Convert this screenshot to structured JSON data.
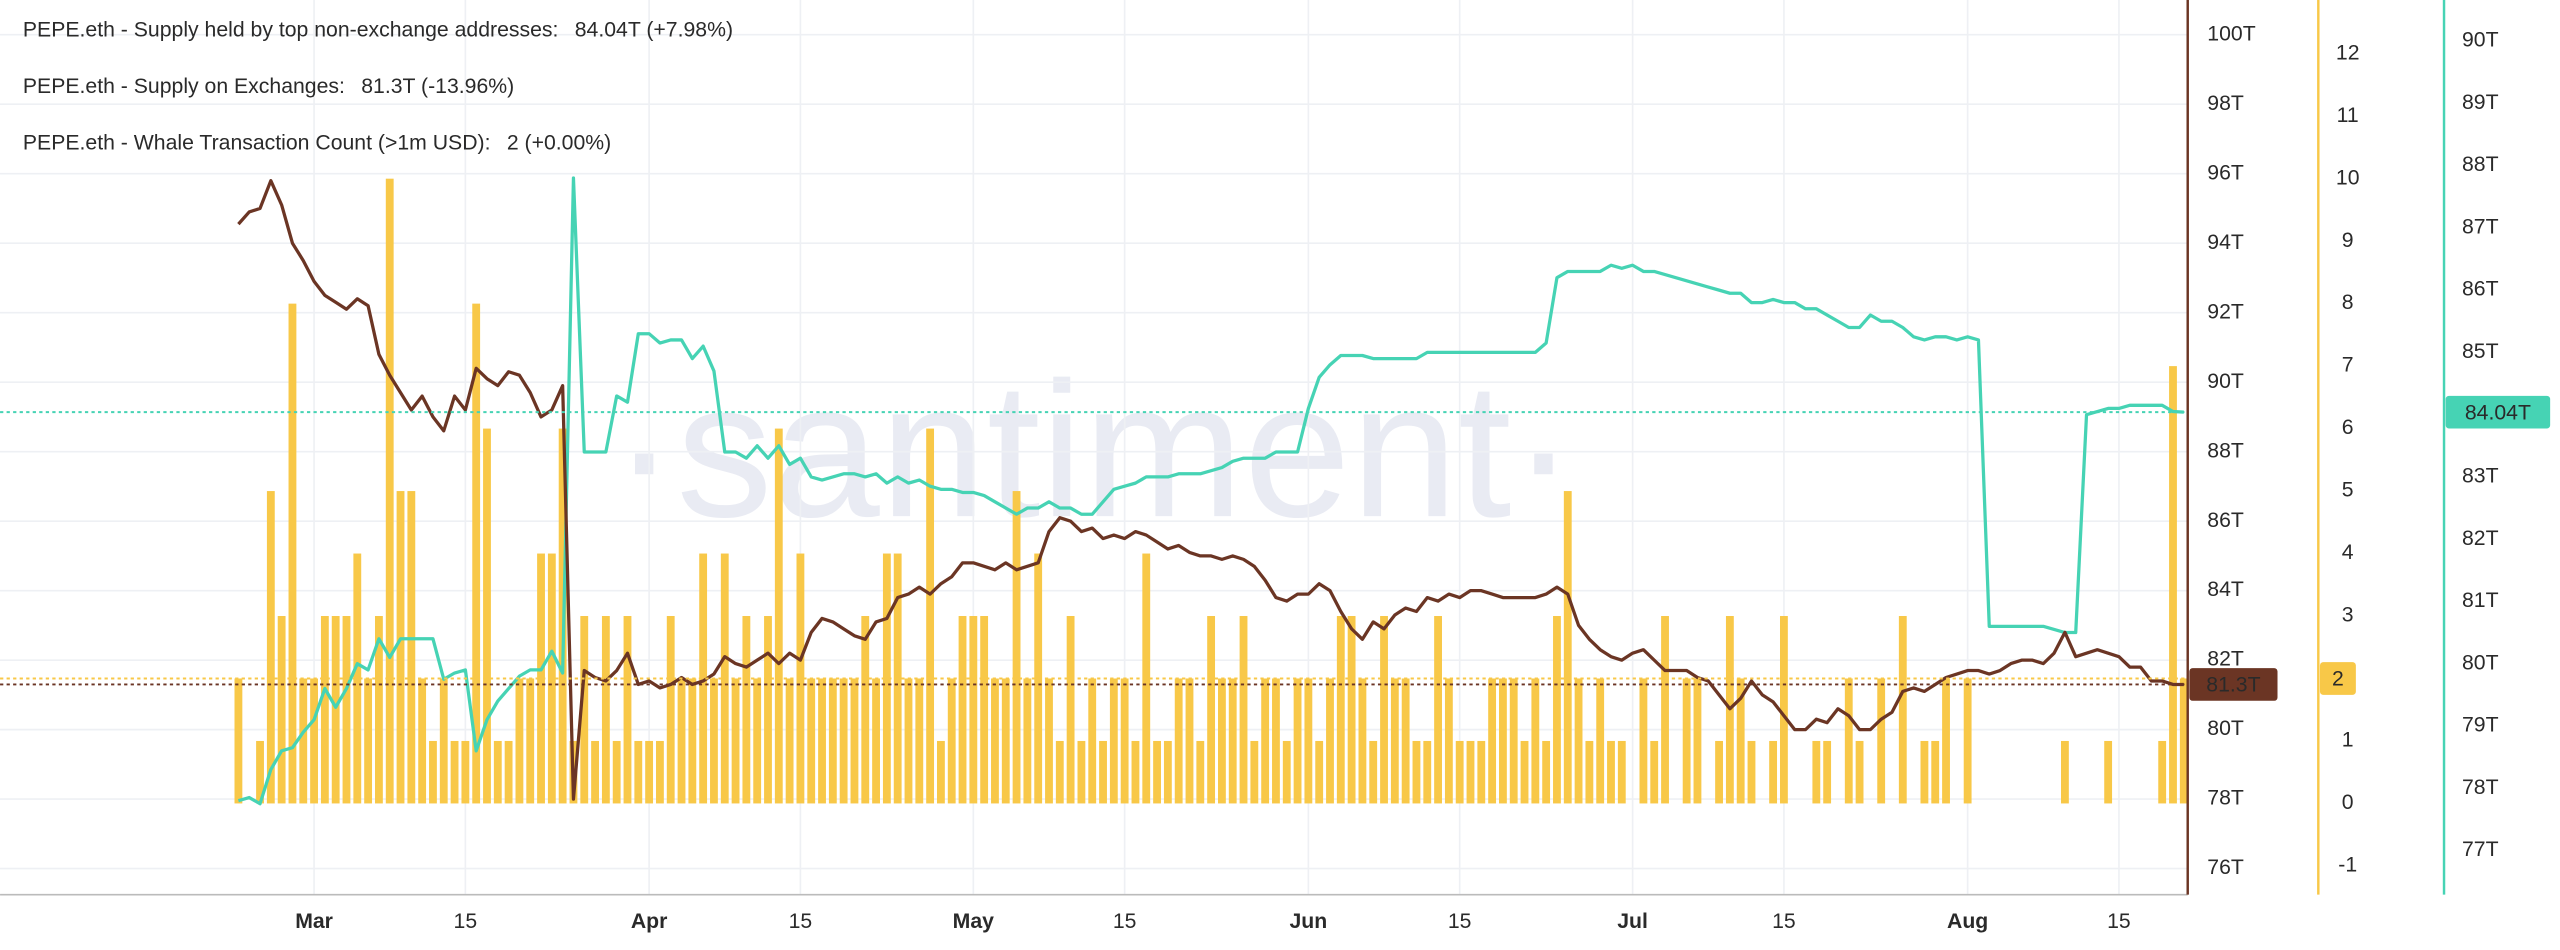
{
  "chart_data": {
    "type": "line",
    "watermark": "·santiment·",
    "grid": true,
    "categories": [
      null,
      null,
      null,
      null,
      null,
      null,
      null,
      "Mar",
      null,
      null,
      null,
      null,
      null,
      null,
      null,
      null,
      null,
      null,
      null,
      null,
      null,
      "15",
      null,
      null,
      null,
      null,
      null,
      null,
      null,
      null,
      null,
      null,
      null,
      null,
      null,
      null,
      null,
      null,
      "Apr",
      null,
      null,
      null,
      null,
      null,
      null,
      null,
      null,
      null,
      null,
      null,
      null,
      null,
      "15",
      null,
      null,
      null,
      null,
      null,
      null,
      null,
      null,
      null,
      null,
      null,
      null,
      null,
      null,
      null,
      "May",
      null,
      null,
      null,
      null,
      null,
      null,
      null,
      null,
      null,
      null,
      null,
      null,
      null,
      "15",
      null,
      null,
      null,
      null,
      null,
      null,
      null,
      null,
      null,
      null,
      null,
      null,
      null,
      null,
      null,
      null,
      "Jun",
      null,
      null,
      null,
      null,
      null,
      null,
      null,
      null,
      null,
      null,
      null,
      null,
      null,
      "15",
      null,
      null,
      null,
      null,
      null,
      null,
      null,
      null,
      null,
      null,
      null,
      null,
      null,
      null,
      null,
      "Jul",
      null,
      null,
      null,
      null,
      null,
      null,
      null,
      null,
      null,
      null,
      null,
      null,
      null,
      "15",
      null,
      null,
      null,
      null,
      null,
      null,
      null,
      null,
      null,
      null,
      null,
      null,
      null,
      null,
      null,
      null,
      "Aug",
      null,
      null,
      null,
      null,
      null,
      null,
      null,
      null,
      null,
      null,
      null,
      null,
      null,
      "15",
      null,
      null,
      null,
      null,
      null,
      null
    ],
    "ylim": [
      75.25,
      101
    ],
    "yticks": [
      {
        "value": 76,
        "label": "76T"
      },
      {
        "value": 78,
        "label": "78T"
      },
      {
        "value": 80,
        "label": "80T"
      },
      {
        "value": 82,
        "label": "82T"
      },
      {
        "value": 84,
        "label": "84T"
      },
      {
        "value": 86,
        "label": "86T"
      },
      {
        "value": 88,
        "label": "88T"
      },
      {
        "value": 90,
        "label": "90T"
      },
      {
        "value": 92,
        "label": "92T"
      },
      {
        "value": 94,
        "label": "94T"
      },
      {
        "value": 96,
        "label": "96T"
      },
      {
        "value": 98,
        "label": "98T"
      },
      {
        "value": 100,
        "label": "100T"
      }
    ],
    "y2lim": [
      -1.46,
      12.86
    ],
    "y2ticks": [
      -1,
      0,
      1,
      2,
      3,
      4,
      5,
      6,
      7,
      8,
      9,
      10,
      11,
      12
    ],
    "y3lim": [
      76.29,
      90.66
    ],
    "y3ticks": [
      {
        "value": 77,
        "label": "77T"
      },
      {
        "value": 78,
        "label": "78T"
      },
      {
        "value": 79,
        "label": "79T"
      },
      {
        "value": 80,
        "label": "80T"
      },
      {
        "value": 81,
        "label": "81T"
      },
      {
        "value": 82,
        "label": "82T"
      },
      {
        "value": 83,
        "label": "83T"
      },
      {
        "value": 84,
        "label": "84T"
      },
      {
        "value": 85,
        "label": "85T"
      },
      {
        "value": 86,
        "label": "86T"
      },
      {
        "value": 87,
        "label": "87T"
      },
      {
        "value": 88,
        "label": "88T"
      },
      {
        "value": 89,
        "label": "89T"
      },
      {
        "value": 90,
        "label": "90T"
      }
    ],
    "series": [
      {
        "name": "PEPE.eth - Supply held by top non-exchange addresses:",
        "legend_value": "84.04T (+7.98%)",
        "last_value_label": "84.04T",
        "color": "#46d3b4",
        "axis": "y3",
        "type": "line",
        "values": [
          77.8,
          77.85,
          77.75,
          78.3,
          78.6,
          78.65,
          78.9,
          79.1,
          79.6,
          79.3,
          79.6,
          80.0,
          79.9,
          80.4,
          80.1,
          80.4,
          80.4,
          80.4,
          80.4,
          79.75,
          79.85,
          79.9,
          78.6,
          79.1,
          79.4,
          79.6,
          79.8,
          79.9,
          79.9,
          80.2,
          79.85,
          87.8,
          83.4,
          83.4,
          83.4,
          84.3,
          84.2,
          85.3,
          85.3,
          85.15,
          85.2,
          85.2,
          84.9,
          85.1,
          84.7,
          83.4,
          83.4,
          83.3,
          83.5,
          83.3,
          83.5,
          83.2,
          83.3,
          83.0,
          82.95,
          83.0,
          83.05,
          83.05,
          83.0,
          83.05,
          82.9,
          83.0,
          82.9,
          82.95,
          82.85,
          82.8,
          82.8,
          82.75,
          82.75,
          82.7,
          82.6,
          82.5,
          82.4,
          82.5,
          82.5,
          82.6,
          82.5,
          82.5,
          82.4,
          82.4,
          82.6,
          82.8,
          82.85,
          82.9,
          83.0,
          83.0,
          83.0,
          83.05,
          83.05,
          83.05,
          83.1,
          83.15,
          83.25,
          83.3,
          83.3,
          83.3,
          83.4,
          83.4,
          83.4,
          84.1,
          84.6,
          84.8,
          84.95,
          84.95,
          84.95,
          84.9,
          84.9,
          84.9,
          84.9,
          84.9,
          85.0,
          85.0,
          85.0,
          85.0,
          85.0,
          85.0,
          85.0,
          85.0,
          85.0,
          85.0,
          85.0,
          85.15,
          86.2,
          86.3,
          86.3,
          86.3,
          86.3,
          86.4,
          86.35,
          86.4,
          86.3,
          86.3,
          86.25,
          86.2,
          86.15,
          86.1,
          86.05,
          86.0,
          85.95,
          85.95,
          85.8,
          85.8,
          85.85,
          85.8,
          85.8,
          85.7,
          85.7,
          85.6,
          85.5,
          85.4,
          85.4,
          85.6,
          85.5,
          85.5,
          85.4,
          85.25,
          85.2,
          85.25,
          85.25,
          85.2,
          85.25,
          85.2,
          80.6,
          80.6,
          80.6,
          80.6,
          80.6,
          80.6,
          80.55,
          80.5,
          80.5,
          84.0,
          84.05,
          84.1,
          84.1,
          84.15,
          84.15,
          84.15,
          84.15,
          84.05,
          84.04
        ]
      },
      {
        "name": "PEPE.eth - Supply on Exchanges:",
        "legend_value": "81.3T (-13.96%)",
        "last_value_label": "81.3T",
        "color": "#6b3524",
        "axis": "y",
        "type": "line",
        "values": [
          94.55,
          94.9,
          95.0,
          95.8,
          95.1,
          94.0,
          93.5,
          92.9,
          92.5,
          92.3,
          92.1,
          92.4,
          92.2,
          90.8,
          90.2,
          89.7,
          89.2,
          89.6,
          89.0,
          88.6,
          89.6,
          89.2,
          90.4,
          90.1,
          89.9,
          90.3,
          90.2,
          89.7,
          89.0,
          89.2,
          89.9,
          78.0,
          81.7,
          81.5,
          81.4,
          81.7,
          82.2,
          81.3,
          81.4,
          81.2,
          81.3,
          81.5,
          81.3,
          81.4,
          81.6,
          82.1,
          81.9,
          81.8,
          82.0,
          82.2,
          81.9,
          82.2,
          82.0,
          82.8,
          83.2,
          83.1,
          82.9,
          82.7,
          82.6,
          83.1,
          83.2,
          83.8,
          83.9,
          84.1,
          83.9,
          84.2,
          84.4,
          84.8,
          84.8,
          84.7,
          84.6,
          84.8,
          84.6,
          84.7,
          84.8,
          85.7,
          86.1,
          86.0,
          85.7,
          85.8,
          85.5,
          85.6,
          85.5,
          85.7,
          85.6,
          85.4,
          85.2,
          85.3,
          85.1,
          85.0,
          85.0,
          84.9,
          85.0,
          84.9,
          84.7,
          84.3,
          83.8,
          83.7,
          83.9,
          83.9,
          84.2,
          84.0,
          83.4,
          82.9,
          82.6,
          83.1,
          82.9,
          83.3,
          83.5,
          83.4,
          83.8,
          83.7,
          83.9,
          83.8,
          84.0,
          84.0,
          83.9,
          83.8,
          83.8,
          83.8,
          83.8,
          83.9,
          84.1,
          83.9,
          83.0,
          82.6,
          82.3,
          82.1,
          82.0,
          82.2,
          82.3,
          82.0,
          81.7,
          81.7,
          81.7,
          81.5,
          81.4,
          81.0,
          80.6,
          80.9,
          81.4,
          81.0,
          80.8,
          80.4,
          80.0,
          80.0,
          80.3,
          80.2,
          80.6,
          80.4,
          80.0,
          80.0,
          80.3,
          80.5,
          81.1,
          81.2,
          81.1,
          81.3,
          81.5,
          81.6,
          81.7,
          81.7,
          81.6,
          81.7,
          81.9,
          82.0,
          82.0,
          81.9,
          82.2,
          82.8,
          82.1,
          82.2,
          82.3,
          82.2,
          82.1,
          81.8,
          81.8,
          81.4,
          81.4,
          81.3,
          81.3
        ]
      },
      {
        "name": "PEPE.eth - Whale Transaction Count (>1m USD):",
        "legend_value": "2 (+0.00%)",
        "last_value_label": "2",
        "color": "#f8c848",
        "axis": "y2",
        "type": "bar",
        "values": [
          2,
          0,
          1,
          5,
          3,
          8,
          2,
          2,
          3,
          3,
          3,
          4,
          2,
          3,
          10,
          5,
          5,
          2,
          1,
          2,
          1,
          1,
          8,
          6,
          1,
          1,
          2,
          2,
          4,
          4,
          6,
          1,
          3,
          1,
          3,
          1,
          3,
          1,
          1,
          1,
          3,
          2,
          2,
          4,
          2,
          4,
          2,
          3,
          2,
          3,
          6,
          2,
          4,
          2,
          2,
          2,
          2,
          2,
          3,
          2,
          4,
          4,
          2,
          2,
          6,
          1,
          2,
          3,
          3,
          3,
          2,
          2,
          5,
          2,
          4,
          2,
          1,
          3,
          1,
          2,
          1,
          2,
          2,
          1,
          4,
          1,
          1,
          2,
          2,
          1,
          3,
          2,
          2,
          3,
          1,
          2,
          2,
          1,
          2,
          2,
          1,
          2,
          3,
          3,
          2,
          1,
          3,
          2,
          2,
          1,
          1,
          3,
          2,
          1,
          1,
          1,
          2,
          2,
          2,
          1,
          2,
          1,
          3,
          5,
          2,
          1,
          2,
          1,
          1,
          0,
          2,
          1,
          3,
          0,
          2,
          2,
          0,
          1,
          3,
          2,
          1,
          0,
          1,
          3,
          0,
          0,
          1,
          1,
          0,
          2,
          1,
          0,
          2,
          0,
          3,
          0,
          1,
          1,
          2,
          0,
          2,
          0,
          0,
          0,
          0,
          0,
          0,
          0,
          0,
          1,
          0,
          0,
          0,
          1,
          0,
          0,
          0,
          0,
          1,
          7,
          2
        ]
      }
    ]
  }
}
